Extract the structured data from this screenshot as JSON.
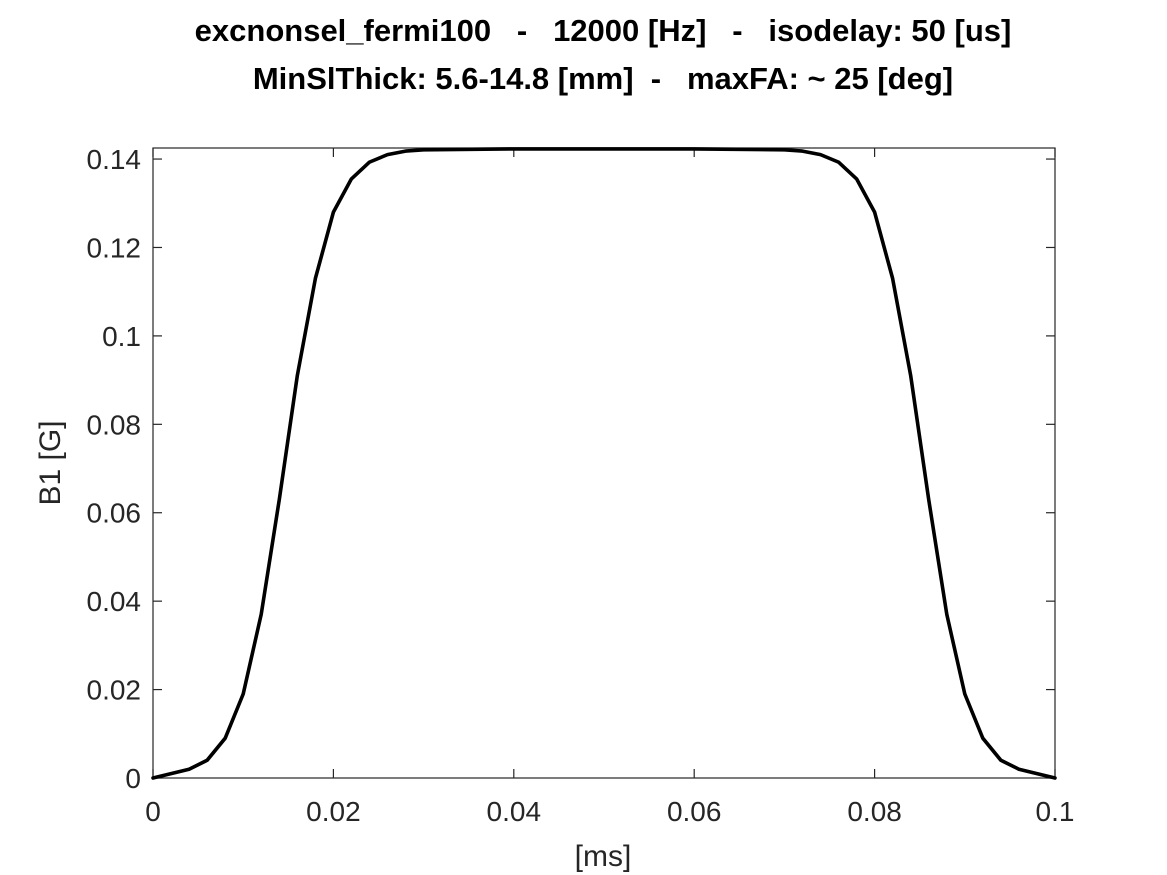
{
  "chart_data": {
    "type": "line",
    "title_lines": [
      "excnonsel_fermi100   -   12000 [Hz]   -   isodelay: 50 [us]",
      "MinSlThick: 5.6-14.8 [mm]  -   maxFA: ~ 25 [deg]"
    ],
    "xlabel": "[ms]",
    "ylabel": "B1 [G]",
    "xlim": [
      0,
      0.1
    ],
    "ylim": [
      0,
      0.1425
    ],
    "x_ticks": [
      0,
      0.02,
      0.04,
      0.06,
      0.08,
      0.1
    ],
    "x_tick_labels": [
      "0",
      "0.02",
      "0.04",
      "0.06",
      "0.08",
      "0.1"
    ],
    "y_ticks": [
      0,
      0.02,
      0.04,
      0.06,
      0.08,
      0.1,
      0.12,
      0.14
    ],
    "y_tick_labels": [
      "0",
      "0.02",
      "0.04",
      "0.06",
      "0.08",
      "0.1",
      "0.12",
      "0.14"
    ],
    "grid": false,
    "line_color": "#000000",
    "series": [
      {
        "x": [
          0,
          0.004,
          0.006,
          0.008,
          0.01,
          0.012,
          0.014,
          0.016,
          0.018,
          0.02,
          0.022,
          0.024,
          0.026,
          0.028,
          0.03,
          0.04,
          0.05,
          0.06,
          0.07,
          0.072,
          0.074,
          0.076,
          0.078,
          0.08,
          0.082,
          0.084,
          0.086,
          0.088,
          0.09,
          0.092,
          0.094,
          0.096,
          0.1
        ],
        "y": [
          0,
          0.002,
          0.004,
          0.009,
          0.019,
          0.037,
          0.063,
          0.091,
          0.113,
          0.128,
          0.1355,
          0.1393,
          0.141,
          0.1418,
          0.1421,
          0.1423,
          0.1423,
          0.1423,
          0.1421,
          0.1418,
          0.141,
          0.1393,
          0.1355,
          0.128,
          0.113,
          0.091,
          0.063,
          0.037,
          0.019,
          0.009,
          0.004,
          0.002,
          0
        ]
      }
    ]
  }
}
